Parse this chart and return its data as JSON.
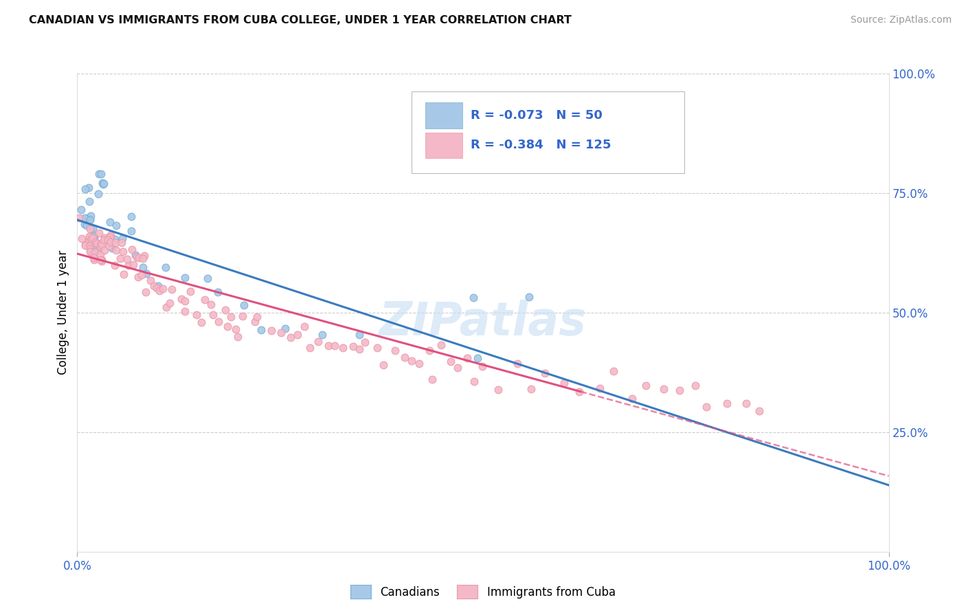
{
  "title": "CANADIAN VS IMMIGRANTS FROM CUBA COLLEGE, UNDER 1 YEAR CORRELATION CHART",
  "source": "Source: ZipAtlas.com",
  "ylabel": "College, Under 1 year",
  "legend_label_blue": "Canadians",
  "legend_label_pink": "Immigrants from Cuba",
  "R_blue": -0.073,
  "N_blue": 50,
  "R_pink": -0.384,
  "N_pink": 125,
  "blue_color": "#a8c8e8",
  "blue_edge": "#7aafd4",
  "pink_color": "#f4b8c8",
  "pink_edge": "#e89aaa",
  "trendline_blue": "#3a7bbf",
  "trendline_pink": "#e05080",
  "watermark": "ZIPatlas",
  "blue_x": [
    0.005,
    0.007,
    0.008,
    0.01,
    0.01,
    0.012,
    0.013,
    0.014,
    0.015,
    0.016,
    0.016,
    0.017,
    0.018,
    0.019,
    0.02,
    0.021,
    0.022,
    0.022,
    0.023,
    0.024,
    0.025,
    0.026,
    0.028,
    0.03,
    0.032,
    0.033,
    0.035,
    0.04,
    0.042,
    0.045,
    0.048,
    0.055,
    0.06,
    0.065,
    0.07,
    0.08,
    0.09,
    0.1,
    0.115,
    0.13,
    0.155,
    0.175,
    0.2,
    0.23,
    0.26,
    0.3,
    0.35,
    0.49,
    0.49,
    0.56
  ],
  "blue_y": [
    0.72,
    0.7,
    0.68,
    0.75,
    0.76,
    0.7,
    0.68,
    0.66,
    0.72,
    0.69,
    0.7,
    0.68,
    0.66,
    0.65,
    0.66,
    0.64,
    0.65,
    0.64,
    0.65,
    0.64,
    0.64,
    0.8,
    0.78,
    0.78,
    0.76,
    0.75,
    0.76,
    0.68,
    0.66,
    0.68,
    0.67,
    0.66,
    0.68,
    0.67,
    0.66,
    0.61,
    0.59,
    0.56,
    0.58,
    0.56,
    0.56,
    0.54,
    0.52,
    0.47,
    0.46,
    0.44,
    0.43,
    0.53,
    0.4,
    0.51
  ],
  "pink_x": [
    0.005,
    0.007,
    0.008,
    0.009,
    0.01,
    0.011,
    0.012,
    0.012,
    0.013,
    0.014,
    0.015,
    0.016,
    0.016,
    0.017,
    0.018,
    0.019,
    0.02,
    0.02,
    0.021,
    0.022,
    0.023,
    0.023,
    0.024,
    0.025,
    0.026,
    0.027,
    0.028,
    0.03,
    0.031,
    0.032,
    0.033,
    0.035,
    0.036,
    0.038,
    0.04,
    0.042,
    0.044,
    0.046,
    0.048,
    0.05,
    0.052,
    0.055,
    0.058,
    0.06,
    0.062,
    0.065,
    0.068,
    0.07,
    0.072,
    0.075,
    0.078,
    0.08,
    0.082,
    0.085,
    0.088,
    0.09,
    0.092,
    0.095,
    0.1,
    0.105,
    0.11,
    0.115,
    0.12,
    0.125,
    0.13,
    0.135,
    0.14,
    0.145,
    0.15,
    0.158,
    0.165,
    0.17,
    0.175,
    0.18,
    0.185,
    0.19,
    0.195,
    0.2,
    0.21,
    0.22,
    0.23,
    0.24,
    0.25,
    0.26,
    0.27,
    0.28,
    0.29,
    0.3,
    0.31,
    0.32,
    0.33,
    0.34,
    0.35,
    0.36,
    0.37,
    0.38,
    0.39,
    0.4,
    0.41,
    0.42,
    0.43,
    0.44,
    0.45,
    0.46,
    0.47,
    0.48,
    0.49,
    0.5,
    0.52,
    0.54,
    0.56,
    0.58,
    0.6,
    0.62,
    0.64,
    0.66,
    0.68,
    0.7,
    0.72,
    0.74,
    0.76,
    0.78,
    0.8,
    0.82,
    0.84
  ],
  "pink_y": [
    0.68,
    0.65,
    0.66,
    0.64,
    0.67,
    0.65,
    0.66,
    0.64,
    0.65,
    0.63,
    0.66,
    0.65,
    0.64,
    0.63,
    0.65,
    0.64,
    0.64,
    0.63,
    0.64,
    0.63,
    0.65,
    0.62,
    0.64,
    0.63,
    0.64,
    0.62,
    0.63,
    0.61,
    0.63,
    0.62,
    0.65,
    0.68,
    0.66,
    0.65,
    0.64,
    0.66,
    0.63,
    0.64,
    0.62,
    0.61,
    0.6,
    0.62,
    0.6,
    0.62,
    0.61,
    0.6,
    0.61,
    0.59,
    0.6,
    0.58,
    0.59,
    0.58,
    0.56,
    0.58,
    0.55,
    0.56,
    0.56,
    0.54,
    0.56,
    0.54,
    0.54,
    0.52,
    0.54,
    0.53,
    0.52,
    0.51,
    0.53,
    0.52,
    0.5,
    0.51,
    0.5,
    0.51,
    0.5,
    0.49,
    0.5,
    0.48,
    0.49,
    0.47,
    0.49,
    0.47,
    0.48,
    0.46,
    0.47,
    0.46,
    0.45,
    0.46,
    0.44,
    0.45,
    0.44,
    0.43,
    0.44,
    0.43,
    0.42,
    0.43,
    0.42,
    0.41,
    0.42,
    0.4,
    0.41,
    0.4,
    0.4,
    0.39,
    0.4,
    0.38,
    0.39,
    0.38,
    0.37,
    0.38,
    0.36,
    0.37,
    0.35,
    0.36,
    0.35,
    0.34,
    0.35,
    0.34,
    0.33,
    0.34,
    0.33,
    0.32,
    0.33,
    0.32,
    0.31,
    0.3,
    0.29
  ]
}
